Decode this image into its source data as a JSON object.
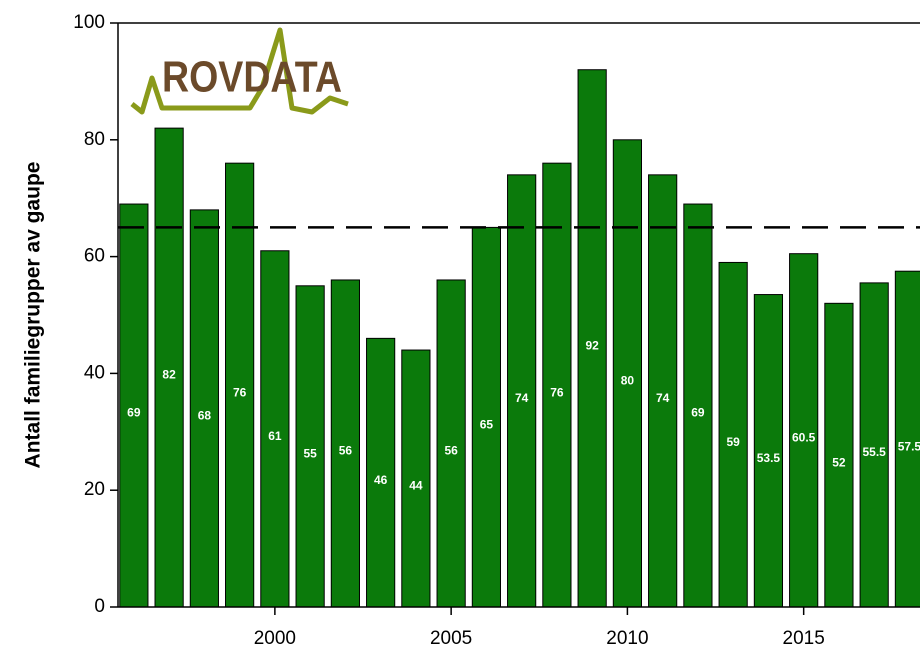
{
  "chart_data": {
    "type": "bar",
    "logo": "ROVDATA",
    "y_label": "Antall familiegrupper av gaupe",
    "x": [
      1996,
      1997,
      1998,
      1999,
      2000,
      2001,
      2002,
      2003,
      2004,
      2005,
      2006,
      2007,
      2008,
      2009,
      2010,
      2011,
      2012,
      2013,
      2014,
      2015,
      2016,
      2017,
      2018
    ],
    "values": [
      69,
      82,
      68,
      76,
      61,
      55,
      56,
      46,
      44,
      56,
      65,
      74,
      76,
      92,
      80,
      74,
      69,
      59,
      53.5,
      60.5,
      52,
      55.5,
      57.5
    ],
    "color": "#0b7a0b",
    "label_color": "#ffffff",
    "reference_line": 65,
    "xlim": [
      1995.55,
      2018.3
    ],
    "xticks": [
      2000,
      2005,
      2010,
      2015
    ],
    "ylim": [
      0,
      100
    ],
    "yticks": [
      0,
      20,
      40,
      60,
      80,
      100
    ],
    "grid": false
  }
}
